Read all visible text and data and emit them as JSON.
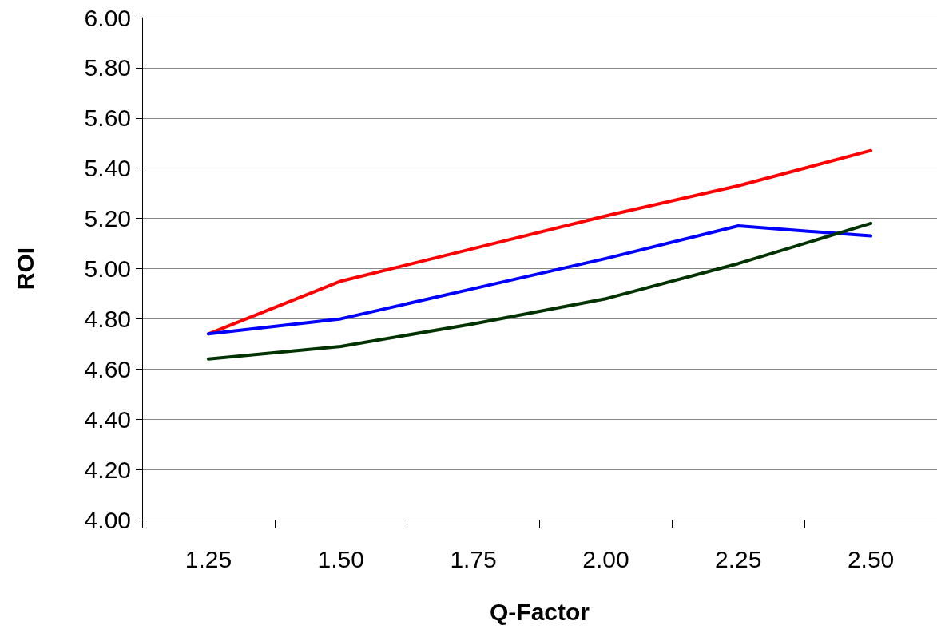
{
  "chart_data": {
    "type": "line",
    "xlabel": "Q-Factor",
    "ylabel": "ROI",
    "categories": [
      "1.25",
      "1.50",
      "1.75",
      "2.00",
      "2.25",
      "2.50"
    ],
    "series": [
      {
        "color": "#ff0000",
        "values": [
          4.74,
          4.95,
          5.08,
          5.21,
          5.33,
          5.47
        ]
      },
      {
        "color": "#0000ff",
        "values": [
          4.74,
          4.8,
          4.92,
          5.04,
          5.17,
          5.13
        ]
      },
      {
        "color": "#003300",
        "values": [
          4.64,
          4.69,
          4.78,
          4.88,
          5.02,
          5.18
        ]
      }
    ],
    "ylim": [
      4.0,
      6.0
    ],
    "yticks": [
      {
        "value": 4.0,
        "label": "4.00"
      },
      {
        "value": 4.2,
        "label": "4.20"
      },
      {
        "value": 4.4,
        "label": "4.40"
      },
      {
        "value": 4.6,
        "label": "4.60"
      },
      {
        "value": 4.8,
        "label": "4.80"
      },
      {
        "value": 5.0,
        "label": "5.00"
      },
      {
        "value": 5.2,
        "label": "5.20"
      },
      {
        "value": 5.4,
        "label": "5.40"
      },
      {
        "value": 5.6,
        "label": "5.60"
      },
      {
        "value": 5.8,
        "label": "5.80"
      },
      {
        "value": 6.0,
        "label": "6.00"
      }
    ],
    "grid": "y",
    "marker": "none",
    "line_style": "solid"
  }
}
